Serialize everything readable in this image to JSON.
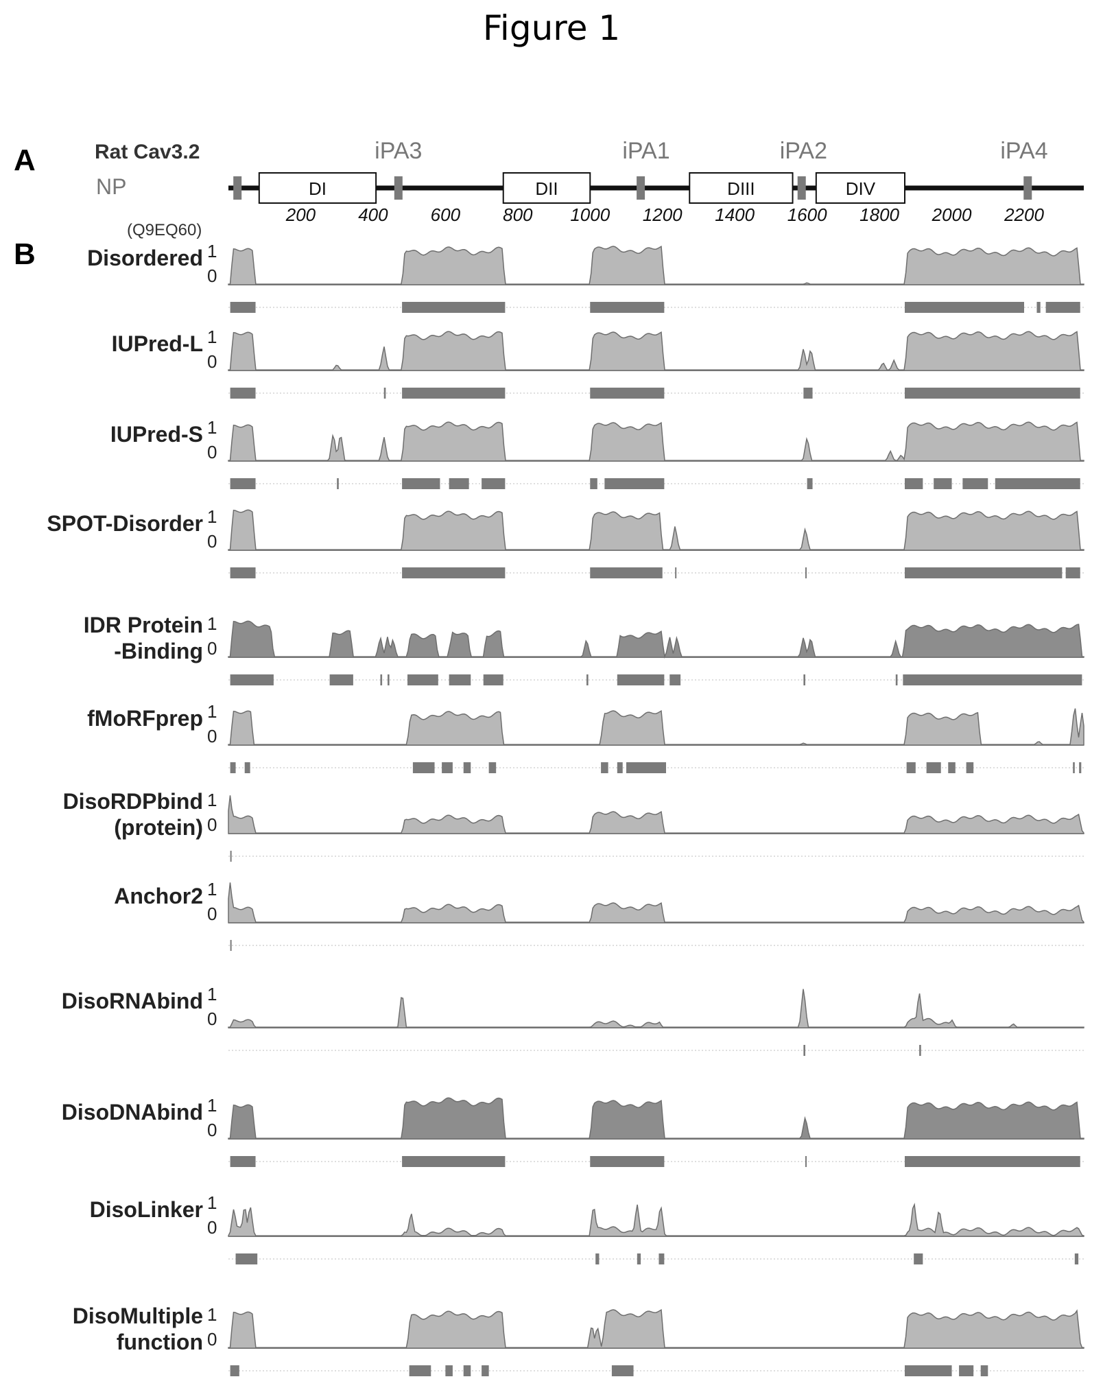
{
  "figure_title": "Figure 1",
  "panels": {
    "a": "A",
    "b": "B"
  },
  "protein": {
    "name": "Rat Cav3.2",
    "subtitle": "NP",
    "accession": "(Q9EQ60)"
  },
  "colors": {
    "profile_fill": "#b8b8b8",
    "profile_line": "#6e6e6e",
    "dark_fill": "#8d8d8d",
    "bar": "#7a7a7a",
    "backbone": "#111111"
  },
  "chart_data": {
    "type": "area",
    "x_axis": {
      "ticks": [
        200,
        400,
        600,
        800,
        1000,
        1200,
        1400,
        1600,
        1800,
        2000,
        2200
      ],
      "xlim": [
        0,
        2365
      ]
    },
    "domains": [
      {
        "label": "DI",
        "start": 85,
        "end": 408
      },
      {
        "label": "DII",
        "start": 760,
        "end": 1000
      },
      {
        "label": "DIII",
        "start": 1275,
        "end": 1560
      },
      {
        "label": "DIV",
        "start": 1625,
        "end": 1870
      }
    ],
    "peptides": [
      {
        "label": "iPA3",
        "position": 470
      },
      {
        "label": "iPA1",
        "position": 1140
      },
      {
        "label": "iPA2",
        "position": 1585
      },
      {
        "label": "iPA4",
        "position": 2210
      }
    ],
    "peptide_labels_x": [
      470,
      1155,
      1590,
      2200
    ],
    "backbone_marks": [
      25,
      470,
      1140,
      1585,
      2210
    ],
    "tracks": [
      {
        "name": "Disordered",
        "label_lines": [
          "Disordered"
        ],
        "y_top": "1",
        "y_bottom": "0",
        "style": "light",
        "regions": [
          [
            5,
            75,
            0.8
          ],
          [
            480,
            765,
            0.82
          ],
          [
            1000,
            1205,
            0.85
          ],
          [
            1870,
            2355,
            0.8
          ]
        ],
        "spikes": [
          [
            1600,
            0.05
          ],
          [
            2288,
            0.4
          ],
          [
            2325,
            0.5
          ]
        ],
        "bars": [
          [
            5,
            75
          ],
          [
            480,
            765
          ],
          [
            1000,
            1205
          ],
          [
            1870,
            2200
          ],
          [
            2235,
            2245
          ],
          [
            2260,
            2355
          ]
        ]
      },
      {
        "name": "IUPred-L",
        "label_lines": [
          "IUPred-L"
        ],
        "y_top": "1",
        "y_bottom": "0",
        "style": "light",
        "regions": [
          [
            5,
            75,
            0.85
          ],
          [
            480,
            765,
            0.85
          ],
          [
            1000,
            1205,
            0.85
          ],
          [
            1870,
            2355,
            0.85
          ]
        ],
        "spikes": [
          [
            300,
            0.15
          ],
          [
            430,
            0.6
          ],
          [
            730,
            0.15
          ],
          [
            1590,
            0.55
          ],
          [
            1610,
            0.55
          ],
          [
            1810,
            0.2
          ],
          [
            1840,
            0.25
          ],
          [
            620,
            0.8
          ],
          [
            570,
            0.2
          ]
        ],
        "bars": [
          [
            5,
            75
          ],
          [
            430,
            435
          ],
          [
            480,
            765
          ],
          [
            1000,
            1205
          ],
          [
            1590,
            1615
          ],
          [
            1870,
            2355
          ]
        ]
      },
      {
        "name": "IUPred-S",
        "label_lines": [
          "IUPred-S"
        ],
        "y_top": "1",
        "y_bottom": "0",
        "style": "light",
        "regions": [
          [
            5,
            75,
            0.8
          ],
          [
            480,
            765,
            0.85
          ],
          [
            1000,
            1205,
            0.85
          ],
          [
            1870,
            2355,
            0.85
          ]
        ],
        "spikes": [
          [
            290,
            0.7
          ],
          [
            310,
            0.7
          ],
          [
            430,
            0.6
          ],
          [
            1600,
            0.6
          ],
          [
            1830,
            0.25
          ],
          [
            1860,
            0.15
          ],
          [
            560,
            0.3
          ]
        ],
        "bars": [
          [
            5,
            75
          ],
          [
            300,
            305
          ],
          [
            480,
            585
          ],
          [
            610,
            665
          ],
          [
            700,
            765
          ],
          [
            1000,
            1020
          ],
          [
            1040,
            1205
          ],
          [
            1600,
            1615
          ],
          [
            1870,
            1920
          ],
          [
            1950,
            2000
          ],
          [
            2030,
            2100
          ],
          [
            2120,
            2355
          ]
        ]
      },
      {
        "name": "SPOT-Disorder",
        "label_lines": [
          "SPOT-Disorder"
        ],
        "y_top": "1",
        "y_bottom": "0",
        "style": "light",
        "regions": [
          [
            5,
            75,
            0.9
          ],
          [
            480,
            765,
            0.85
          ],
          [
            1000,
            1200,
            0.85
          ],
          [
            1870,
            2355,
            0.85
          ]
        ],
        "spikes": [
          [
            1235,
            0.6
          ],
          [
            1595,
            0.55
          ]
        ],
        "bars": [
          [
            5,
            75
          ],
          [
            480,
            765
          ],
          [
            1000,
            1200
          ],
          [
            1235,
            1238
          ],
          [
            1595,
            1598
          ],
          [
            1870,
            2305
          ],
          [
            2315,
            2355
          ]
        ]
      },
      {
        "name": "IDR Protein -Binding",
        "label_lines": [
          "IDR Protein",
          "-Binding"
        ],
        "y_top": "1",
        "y_bottom": "0",
        "style": "dark",
        "regions": [
          [
            5,
            125,
            0.8
          ],
          [
            280,
            345,
            0.55
          ],
          [
            495,
            580,
            0.55
          ],
          [
            610,
            670,
            0.55
          ],
          [
            705,
            760,
            0.55
          ],
          [
            1075,
            1205,
            0.55
          ],
          [
            1865,
            2360,
            0.7
          ]
        ],
        "spikes": [
          [
            420,
            0.5
          ],
          [
            440,
            0.5
          ],
          [
            455,
            0.45
          ],
          [
            990,
            0.45
          ],
          [
            1220,
            0.5
          ],
          [
            1240,
            0.5
          ],
          [
            1590,
            0.5
          ],
          [
            1610,
            0.5
          ],
          [
            1845,
            0.4
          ]
        ],
        "bars": [
          [
            5,
            125
          ],
          [
            280,
            345
          ],
          [
            420,
            425
          ],
          [
            440,
            445
          ],
          [
            495,
            580
          ],
          [
            610,
            670
          ],
          [
            705,
            760
          ],
          [
            990,
            995
          ],
          [
            1075,
            1205
          ],
          [
            1220,
            1250
          ],
          [
            1590,
            1595
          ],
          [
            1845,
            1850
          ],
          [
            1865,
            2360
          ]
        ]
      },
      {
        "name": "fMoRFprep",
        "label_lines": [
          "fMoRFprep"
        ],
        "y_top": "1",
        "y_bottom": "0",
        "style": "light",
        "regions": [
          [
            5,
            70,
            0.75
          ],
          [
            495,
            760,
            0.72
          ],
          [
            1030,
            1205,
            0.75
          ],
          [
            1870,
            2080,
            0.7
          ]
        ],
        "spikes": [
          [
            2240,
            0.1
          ],
          [
            2340,
            1.0
          ],
          [
            2360,
            0.8
          ],
          [
            1590,
            0.05
          ]
        ],
        "bars": [
          [
            5,
            20
          ],
          [
            45,
            60
          ],
          [
            510,
            570
          ],
          [
            590,
            620
          ],
          [
            650,
            670
          ],
          [
            720,
            740
          ],
          [
            1030,
            1050
          ],
          [
            1075,
            1090
          ],
          [
            1100,
            1210
          ],
          [
            1875,
            1900
          ],
          [
            1930,
            1970
          ],
          [
            1990,
            2010
          ],
          [
            2040,
            2060
          ],
          [
            2335,
            2340
          ],
          [
            2352,
            2358
          ]
        ]
      },
      {
        "name": "DisoRDPbind (protein)",
        "label_lines": [
          "DisoRDPbind",
          "(protein)"
        ],
        "y_top": "1",
        "y_bottom": "0",
        "style": "light",
        "regions": [
          [
            5,
            75,
            0.35
          ],
          [
            480,
            765,
            0.35
          ],
          [
            1000,
            1205,
            0.45
          ],
          [
            1870,
            2355,
            0.35
          ]
        ],
        "spikes": [
          [
            5,
            0.95
          ],
          [
            2350,
            0.5
          ]
        ],
        "bars": [
          [
            5,
            7
          ]
        ]
      },
      {
        "name": "Anchor2",
        "label_lines": [
          "Anchor2"
        ],
        "y_top": "1",
        "y_bottom": "0",
        "style": "light",
        "regions": [
          [
            5,
            75,
            0.3
          ],
          [
            480,
            765,
            0.35
          ],
          [
            1000,
            1205,
            0.4
          ],
          [
            1870,
            2355,
            0.3
          ]
        ],
        "spikes": [
          [
            5,
            1.0
          ],
          [
            2350,
            0.45
          ]
        ],
        "bars": [
          [
            5,
            7
          ]
        ]
      },
      {
        "name": "DisoRNAbind",
        "label_lines": [
          "DisoRNAbind"
        ],
        "y_top": "1",
        "y_bottom": "0",
        "style": "light",
        "regions": [
          [
            5,
            75,
            0.12
          ],
          [
            1000,
            1200,
            0.08
          ],
          [
            1870,
            2000,
            0.15
          ]
        ],
        "spikes": [
          [
            480,
            0.9
          ],
          [
            1590,
            1.0
          ],
          [
            1910,
            0.9
          ],
          [
            2170,
            0.1
          ],
          [
            2000,
            0.2
          ]
        ],
        "bars": [
          [
            1590,
            1595
          ],
          [
            1910,
            1915
          ]
        ]
      },
      {
        "name": "DisoDNAbind",
        "label_lines": [
          "DisoDNAbind"
        ],
        "y_top": "1",
        "y_bottom": "0",
        "style": "dark",
        "regions": [
          [
            5,
            75,
            0.75
          ],
          [
            480,
            765,
            0.9
          ],
          [
            1000,
            1205,
            0.85
          ],
          [
            1870,
            2355,
            0.8
          ]
        ],
        "spikes": [
          [
            1595,
            0.55
          ]
        ],
        "bars": [
          [
            5,
            75
          ],
          [
            480,
            765
          ],
          [
            1000,
            1205
          ],
          [
            1595,
            1598
          ],
          [
            1870,
            2355
          ]
        ]
      },
      {
        "name": "DisoLinker",
        "label_lines": [
          "DisoLinker"
        ],
        "y_top": "1",
        "y_bottom": "0",
        "style": "light",
        "regions": [
          [
            5,
            75,
            0.2
          ],
          [
            480,
            765,
            0.1
          ],
          [
            1000,
            1205,
            0.15
          ],
          [
            1870,
            2355,
            0.12
          ]
        ],
        "spikes": [
          [
            15,
            0.7
          ],
          [
            45,
            0.8
          ],
          [
            60,
            0.8
          ],
          [
            505,
            0.6
          ],
          [
            1010,
            0.8
          ],
          [
            1130,
            0.8
          ],
          [
            1195,
            0.8
          ],
          [
            1895,
            0.9
          ],
          [
            1965,
            0.7
          ],
          [
            2350,
            0.2
          ]
        ],
        "bars": [
          [
            20,
            80
          ],
          [
            1015,
            1025
          ],
          [
            1130,
            1140
          ],
          [
            1190,
            1205
          ],
          [
            1895,
            1920
          ],
          [
            2340,
            2350
          ]
        ]
      },
      {
        "name": "DisoMultiple function",
        "label_lines": [
          "DisoMultiple",
          "function"
        ],
        "y_top": "1",
        "y_bottom": "0",
        "style": "light",
        "regions": [
          [
            5,
            75,
            0.8
          ],
          [
            495,
            765,
            0.8
          ],
          [
            1035,
            1205,
            0.85
          ],
          [
            1870,
            2355,
            0.78
          ]
        ],
        "spikes": [
          [
            1005,
            0.6
          ],
          [
            1020,
            0.55
          ],
          [
            2230,
            0.6
          ],
          [
            2345,
            1.0
          ]
        ],
        "bars": [
          [
            5,
            30
          ],
          [
            500,
            560
          ],
          [
            600,
            620
          ],
          [
            650,
            670
          ],
          [
            700,
            720
          ],
          [
            1060,
            1120
          ],
          [
            1870,
            2000
          ],
          [
            2020,
            2060
          ],
          [
            2080,
            2100
          ]
        ]
      }
    ]
  }
}
